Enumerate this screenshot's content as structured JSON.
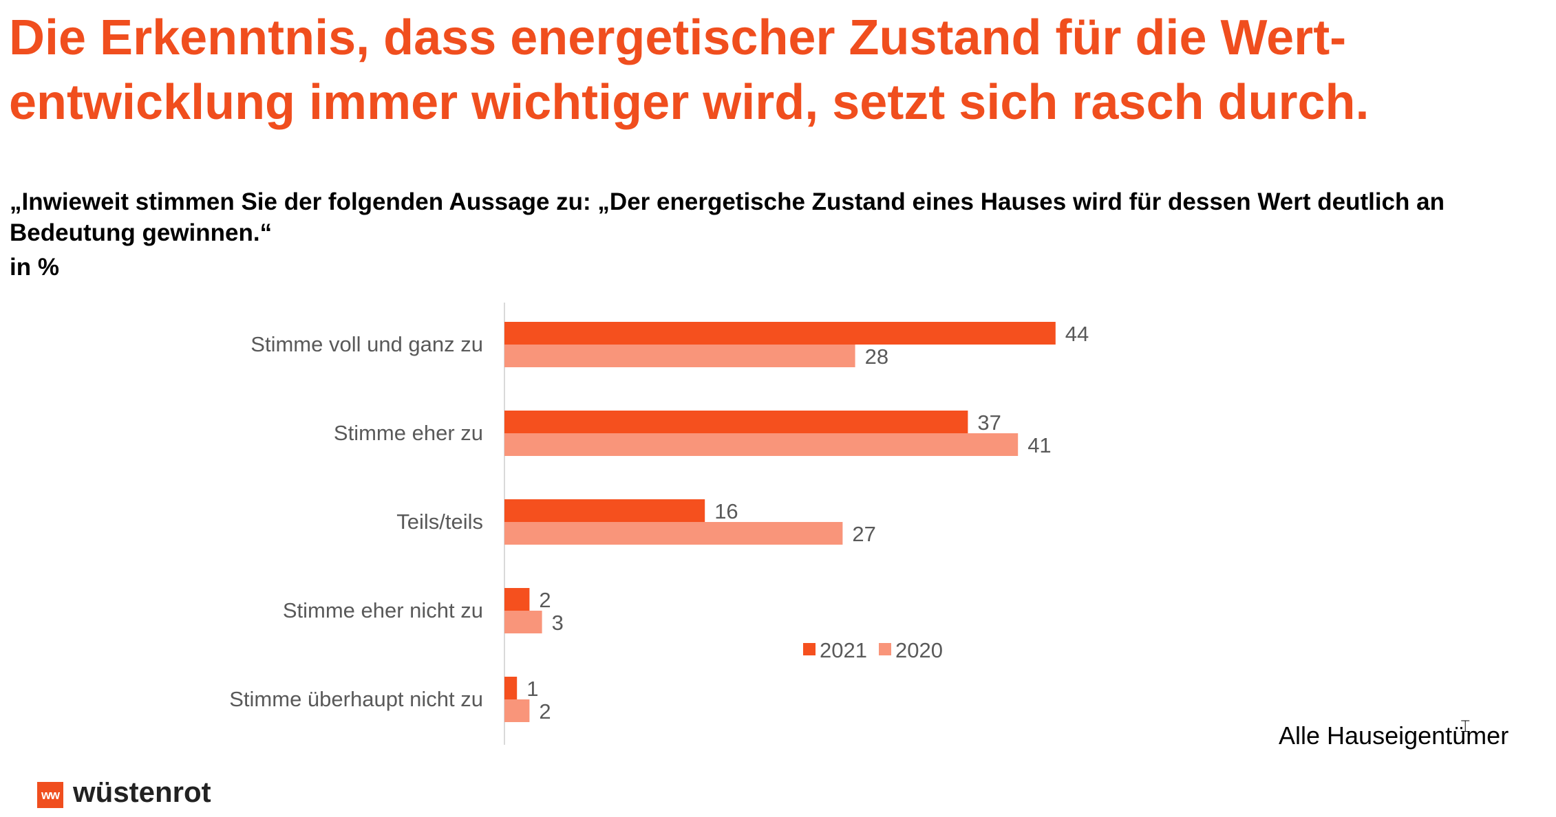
{
  "header": {
    "title_line1": "Die Erkenntnis, dass energetischer Zustand für die Wert-",
    "title_line2": "entwicklung immer wichtiger wird, setzt sich rasch durch.",
    "question": "„Inwieweit stimmen Sie der folgenden Aussage zu: „Der energetische Zustand eines Hauses wird für dessen Wert deutlich an Bedeutung gewinnen.“",
    "unit": "in %"
  },
  "chart_data": {
    "type": "bar",
    "orientation": "horizontal",
    "categories": [
      "Stimme voll und ganz zu",
      "Stimme eher zu",
      "Teils/teils",
      "Stimme eher nicht zu",
      "Stimme überhaupt nicht zu"
    ],
    "series": [
      {
        "name": "2021",
        "values": [
          44,
          37,
          16,
          2,
          1
        ],
        "color": "#f5501e"
      },
      {
        "name": "2020",
        "values": [
          28,
          41,
          27,
          3,
          2
        ],
        "color": "#f9957a"
      }
    ],
    "xlim": [
      0,
      44
    ],
    "legend": "bottom-right",
    "grid": false,
    "data_labels": true
  },
  "footer": {
    "note": "Alle Hauseigentümer",
    "brand_mark": "ww",
    "brand": "wüstenrot"
  },
  "colors": {
    "accent": "#f04e1e",
    "series_2021": "#f5501e",
    "series_2020": "#f9957a",
    "axis": "#d9d9d9",
    "label_text": "#595959"
  },
  "icons": {
    "cursor": "text-cursor-icon"
  }
}
